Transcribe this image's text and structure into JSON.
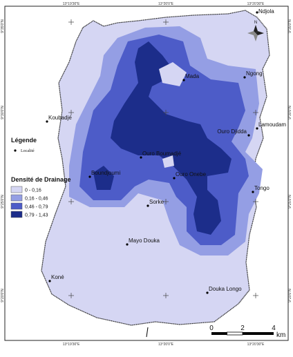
{
  "map": {
    "top_labels": [
      "13°19'30\"E",
      "13°20'0\"E",
      "13°20'30\"E"
    ],
    "bottom_labels": [
      "13°19'30\"E",
      "13°20'0\"E",
      "13°20'30\"E"
    ],
    "left_labels": [
      "9°35'0\"N",
      "9°30'0\"N",
      "9°25'0\"N",
      "9°20'0\"N"
    ],
    "right_labels": [
      "9°35'0\"N",
      "9°30'0\"N",
      "9°25'0\"N",
      "9°20'0\"N"
    ],
    "localities": [
      "Ndjola",
      "Mada",
      "Ngong",
      "Koubadjé",
      "Ouro Djidda",
      "Lamoudam",
      "Ouro Boumadjé",
      "Boundjoumi",
      "Ouro Onebe",
      "Tongo",
      "Sorke",
      "Mayo Douka",
      "Koné",
      "Douka Longo"
    ],
    "legend": {
      "title": "Légende",
      "point_label": "Localité",
      "density_title": "Densité de Drainage",
      "classes": [
        {
          "label": "0 - 0,16",
          "color": "#d5d6f3"
        },
        {
          "label": "0,16 - 0,46",
          "color": "#949ee4"
        },
        {
          "label": "0,46 - 0,79",
          "color": "#4d5cc8"
        },
        {
          "label": "0,79 - 1,43",
          "color": "#1c2d8a"
        }
      ]
    },
    "scale": {
      "ticks": [
        "0",
        "2",
        "4"
      ],
      "unit": "km"
    },
    "north": "N"
  }
}
